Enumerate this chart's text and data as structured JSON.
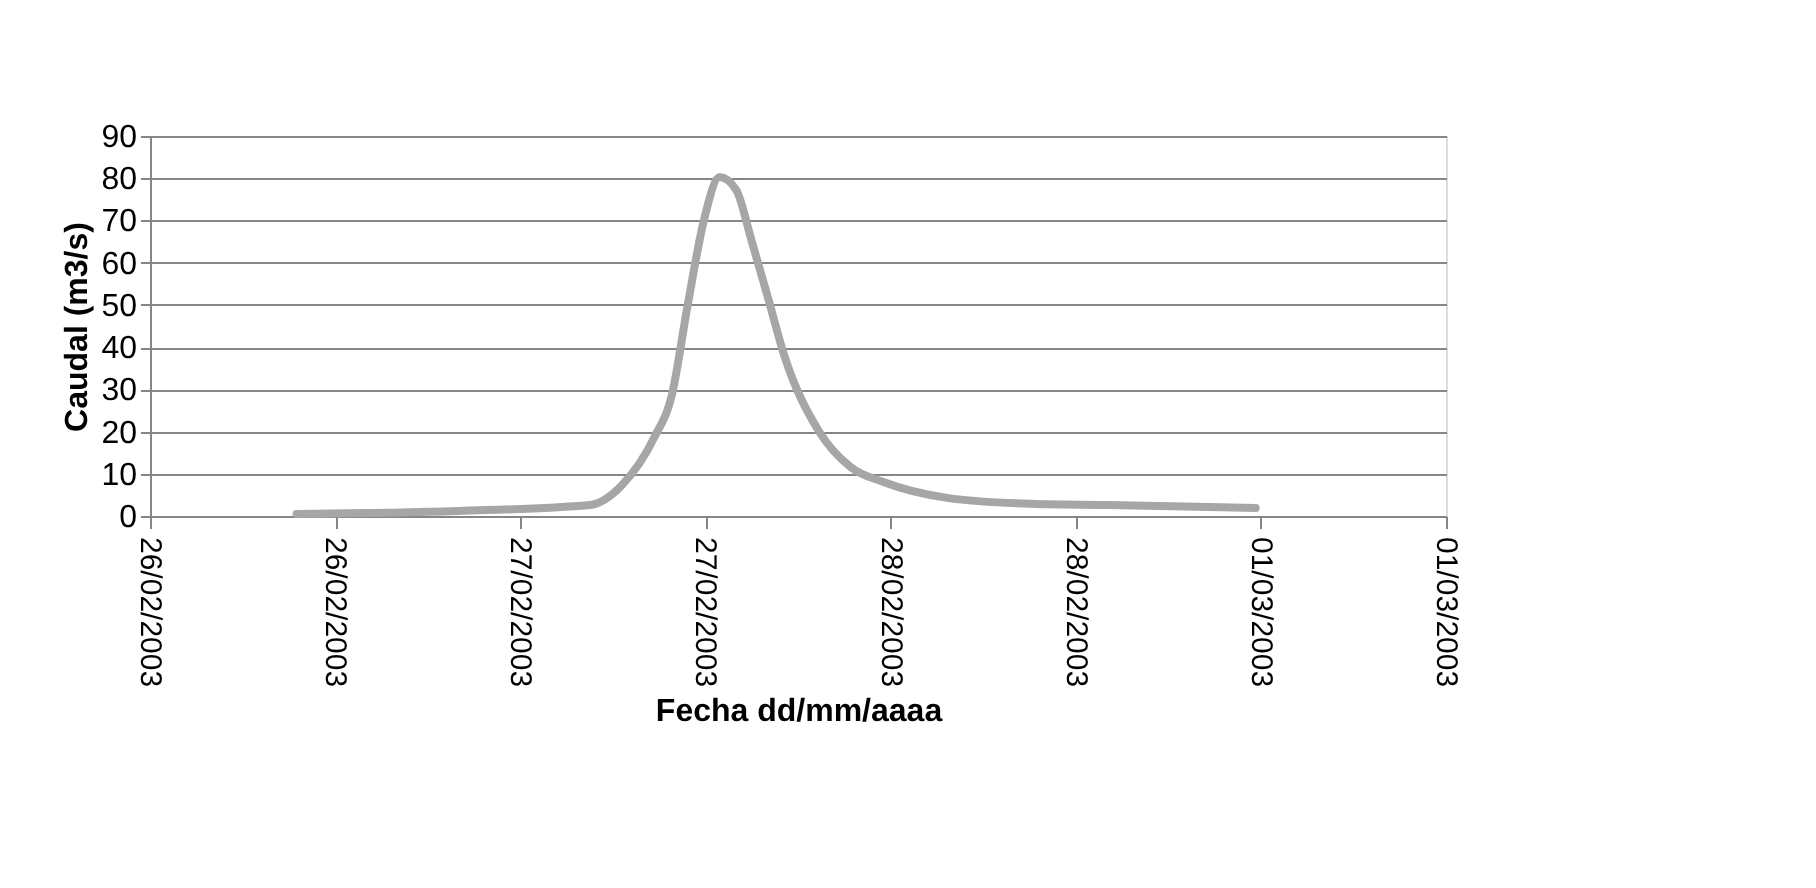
{
  "chart_data": {
    "type": "line",
    "xlabel": "Fecha dd/mm/aaaa",
    "ylabel": "Caudal (m3/s)",
    "x": [
      "2003-02-26T09:30",
      "2003-02-26T20:00",
      "2003-02-27T04:30",
      "2003-02-27T06:35",
      "2003-02-27T08:40",
      "2003-02-27T09:50",
      "2003-02-27T10:50",
      "2003-02-27T11:55",
      "2003-02-27T12:55",
      "2003-02-27T14:00",
      "2003-02-27T15:00",
      "2003-02-27T16:05",
      "2003-02-27T17:05",
      "2003-02-27T19:20",
      "2003-02-27T21:25",
      "2003-02-27T23:30",
      "2003-02-28T03:40",
      "2003-02-28T09:00",
      "2003-02-28T14:10",
      "2003-02-28T23:40"
    ],
    "series": [
      {
        "color": "#a6a6a6",
        "values": [
          0.5,
          1.2,
          2.6,
          7.3,
          18.5,
          28.8,
          49.6,
          70.3,
          80.3,
          77.2,
          65.1,
          51.3,
          38.3,
          20.2,
          11.6,
          8.1,
          4.3,
          2.9,
          2.6,
          1.9
        ]
      }
    ],
    "xlim": [
      "2003-02-26T00:00",
      "2003-03-01T12:00"
    ],
    "xticks": [
      {
        "value": "2003-02-26T00:00",
        "label": "26/02/2003"
      },
      {
        "value": "2003-02-26T12:00",
        "label": "26/02/2003"
      },
      {
        "value": "2003-02-27T00:00",
        "label": "27/02/2003"
      },
      {
        "value": "2003-02-27T12:00",
        "label": "27/02/2003"
      },
      {
        "value": "2003-02-28T00:00",
        "label": "28/02/2003"
      },
      {
        "value": "2003-02-28T12:00",
        "label": "28/02/2003"
      },
      {
        "value": "2003-03-01T00:00",
        "label": "01/03/2003"
      },
      {
        "value": "2003-03-01T12:00",
        "label": "01/03/2003"
      }
    ],
    "ylim": [
      0,
      90
    ],
    "yticks": [
      0,
      10,
      20,
      30,
      40,
      50,
      60,
      70,
      80,
      90
    ],
    "grid": "y",
    "marker": "none",
    "line_style": "solid"
  }
}
